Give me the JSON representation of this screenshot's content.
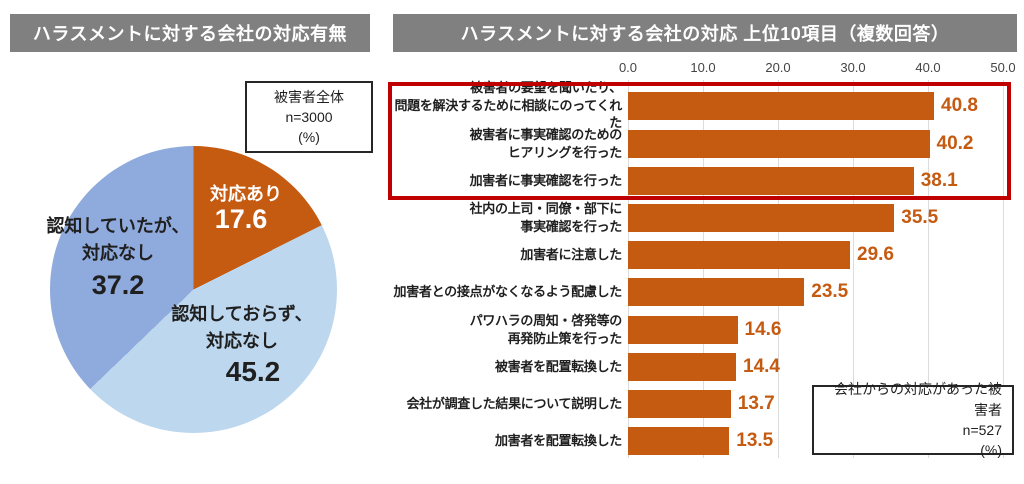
{
  "colors": {
    "banner_bg": "#808080",
    "banner_text": "#FFFFFF",
    "bar_color": "#C55A11",
    "value_color": "#C55A11",
    "highlight_color": "#C00000",
    "grid_color": "#DCDCDC",
    "pie_orange": "#C55A11",
    "pie_light_blue": "#BDD7EE",
    "pie_periwinkle": "#8FAADC"
  },
  "chart_data": [
    {
      "type": "pie",
      "title": "ハラスメントに対する会社の対応有無",
      "note": "被害者全体\nn=3000\n(%)",
      "unit": "%",
      "start_angle": "top",
      "direction": "clockwise",
      "slices": [
        {
          "label": "対応あり",
          "value": 17.6
        },
        {
          "label": "認知しておらず、\n対応なし",
          "value": 45.2
        },
        {
          "label": "認知していたが、\n対応なし",
          "value": 37.2
        }
      ],
      "colors": [
        "#C55A11",
        "#BDD7EE",
        "#8FAADC"
      ]
    },
    {
      "type": "bar",
      "orientation": "horizontal",
      "title": "ハラスメントに対する会社の対応 上位10項目（複数回答）",
      "note": "会社からの対応があった被害者\nn=527\n(%)",
      "unit": "%",
      "xlim": [
        0,
        50
      ],
      "x_ticks": [
        "0.0",
        "10.0",
        "20.0",
        "30.0",
        "40.0",
        "50.0"
      ],
      "grid": true,
      "highlight_top_n": 3,
      "categories": [
        "被害者の要望を聞いたり、\n問題を解決するために相談にのってくれた",
        "被害者に事実確認のための\nヒアリングを行った",
        "加害者に事実確認を行った",
        "社内の上司・同僚・部下に\n事実確認を行った",
        "加害者に注意した",
        "加害者との接点がなくなるよう配慮した",
        "パワハラの周知・啓発等の\n再発防止策を行った",
        "被害者を配置転換した",
        "会社が調査した結果について説明した",
        "加害者を配置転換した"
      ],
      "values": [
        40.8,
        40.2,
        38.1,
        35.5,
        29.6,
        23.5,
        14.6,
        14.4,
        13.7,
        13.5
      ]
    }
  ]
}
